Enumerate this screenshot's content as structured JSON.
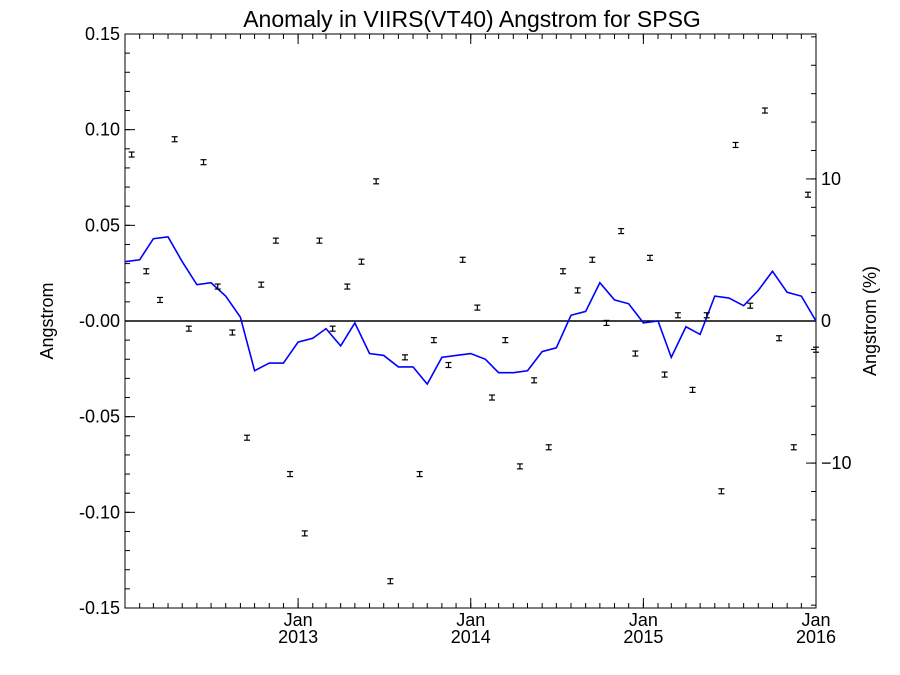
{
  "chart_data": {
    "type": "line",
    "title": "Anomaly in VIIRS(VT40) Angstrom for SPSG",
    "ylabel": "Angstrom",
    "ylabel_right": "Angstrom (%)",
    "xlim": [
      "2012-01-01",
      "2016-01-01"
    ],
    "ylim": [
      -0.15,
      0.15
    ],
    "ylim_right_percent": [
      -20.2,
      20.2
    ],
    "x_ticks": [
      {
        "date": "2013-01-01",
        "month": "Jan",
        "year": "2013"
      },
      {
        "date": "2014-01-01",
        "month": "Jan",
        "year": "2014"
      },
      {
        "date": "2015-01-01",
        "month": "Jan",
        "year": "2015"
      },
      {
        "date": "2016-01-01",
        "month": "Jan",
        "year": "2016"
      }
    ],
    "y_ticks": [
      "0.15",
      "0.10",
      "0.05",
      "-0.00",
      "-0.05",
      "-0.10",
      "-0.15"
    ],
    "y_tick_values": [
      0.15,
      0.1,
      0.05,
      0.0,
      -0.05,
      -0.1,
      -0.15
    ],
    "y_ticks_right": [
      "10",
      "0",
      "−10"
    ],
    "y_tick_values_right": [
      10,
      0,
      -10
    ],
    "zero_line": true,
    "line_color": "#0000ff",
    "marker_color": "#000000",
    "series": [
      {
        "kind": "monthly_anomaly_points_with_error_bars",
        "points": [
          {
            "date": "2012-01-15",
            "y": 0.087
          },
          {
            "date": "2012-02-15",
            "y": 0.026
          },
          {
            "date": "2012-03-15",
            "y": 0.011
          },
          {
            "date": "2012-04-15",
            "y": 0.095
          },
          {
            "date": "2012-05-15",
            "y": -0.004
          },
          {
            "date": "2012-06-15",
            "y": 0.083
          },
          {
            "date": "2012-07-15",
            "y": 0.018
          },
          {
            "date": "2012-08-15",
            "y": -0.006
          },
          {
            "date": "2012-09-15",
            "y": -0.061
          },
          {
            "date": "2012-10-15",
            "y": 0.019
          },
          {
            "date": "2012-11-15",
            "y": 0.042
          },
          {
            "date": "2012-12-15",
            "y": -0.08
          },
          {
            "date": "2013-01-15",
            "y": -0.111
          },
          {
            "date": "2013-02-15",
            "y": 0.042
          },
          {
            "date": "2013-03-15",
            "y": -0.004
          },
          {
            "date": "2013-04-15",
            "y": 0.018
          },
          {
            "date": "2013-05-15",
            "y": 0.031
          },
          {
            "date": "2013-06-15",
            "y": 0.073
          },
          {
            "date": "2013-07-15",
            "y": -0.136
          },
          {
            "date": "2013-08-15",
            "y": -0.019
          },
          {
            "date": "2013-09-15",
            "y": -0.08
          },
          {
            "date": "2013-10-15",
            "y": -0.01
          },
          {
            "date": "2013-11-15",
            "y": -0.023
          },
          {
            "date": "2013-12-15",
            "y": 0.032
          },
          {
            "date": "2014-01-15",
            "y": 0.007
          },
          {
            "date": "2014-02-15",
            "y": -0.04
          },
          {
            "date": "2014-03-15",
            "y": -0.01
          },
          {
            "date": "2014-04-15",
            "y": -0.076
          },
          {
            "date": "2014-05-15",
            "y": -0.031
          },
          {
            "date": "2014-06-15",
            "y": -0.066
          },
          {
            "date": "2014-07-15",
            "y": 0.026
          },
          {
            "date": "2014-08-15",
            "y": 0.016
          },
          {
            "date": "2014-09-15",
            "y": 0.032
          },
          {
            "date": "2014-10-15",
            "y": -0.001
          },
          {
            "date": "2014-11-15",
            "y": 0.047
          },
          {
            "date": "2014-12-15",
            "y": -0.017
          },
          {
            "date": "2015-01-15",
            "y": 0.033
          },
          {
            "date": "2015-02-15",
            "y": -0.028
          },
          {
            "date": "2015-03-15",
            "y": 0.003
          },
          {
            "date": "2015-04-15",
            "y": -0.036
          },
          {
            "date": "2015-05-15",
            "y": 0.003
          },
          {
            "date": "2015-06-15",
            "y": -0.089
          },
          {
            "date": "2015-07-15",
            "y": 0.092
          },
          {
            "date": "2015-08-15",
            "y": 0.008
          },
          {
            "date": "2015-09-15",
            "y": 0.11
          },
          {
            "date": "2015-10-15",
            "y": -0.009
          },
          {
            "date": "2015-11-15",
            "y": -0.066
          },
          {
            "date": "2015-12-15",
            "y": 0.066
          },
          {
            "date": "2016-01-01",
            "y": -0.015
          }
        ]
      },
      {
        "kind": "running_mean_line",
        "x": [
          "2012-01-01",
          "2012-02-01",
          "2012-03-01",
          "2012-04-01",
          "2012-05-01",
          "2012-06-01",
          "2012-07-01",
          "2012-08-01",
          "2012-09-01",
          "2012-10-01",
          "2012-11-01",
          "2012-12-01",
          "2013-01-01",
          "2013-02-01",
          "2013-03-01",
          "2013-04-01",
          "2013-05-01",
          "2013-06-01",
          "2013-07-01",
          "2013-08-01",
          "2013-09-01",
          "2013-10-01",
          "2013-11-01",
          "2013-12-01",
          "2014-01-01",
          "2014-02-01",
          "2014-03-01",
          "2014-04-01",
          "2014-05-01",
          "2014-06-01",
          "2014-07-01",
          "2014-08-01",
          "2014-09-01",
          "2014-10-01",
          "2014-11-01",
          "2014-12-01",
          "2015-01-01",
          "2015-02-01",
          "2015-03-01",
          "2015-04-01",
          "2015-05-01",
          "2015-06-01",
          "2015-07-01",
          "2015-08-01",
          "2015-09-01",
          "2015-10-01",
          "2015-11-01",
          "2015-12-01",
          "2016-01-01"
        ],
        "values": [
          0.031,
          0.032,
          0.043,
          0.044,
          0.031,
          0.019,
          0.02,
          0.013,
          0.002,
          -0.026,
          -0.022,
          -0.022,
          -0.011,
          -0.009,
          -0.004,
          -0.013,
          -0.001,
          -0.017,
          -0.018,
          -0.024,
          -0.024,
          -0.033,
          -0.019,
          -0.018,
          -0.017,
          -0.02,
          -0.027,
          -0.027,
          -0.026,
          -0.016,
          -0.014,
          0.003,
          0.005,
          0.02,
          0.011,
          0.009,
          -0.001,
          0.0,
          -0.019,
          -0.003,
          -0.007,
          0.013,
          0.012,
          0.008,
          0.016,
          0.026,
          0.015,
          0.013,
          0.0
        ]
      }
    ]
  }
}
